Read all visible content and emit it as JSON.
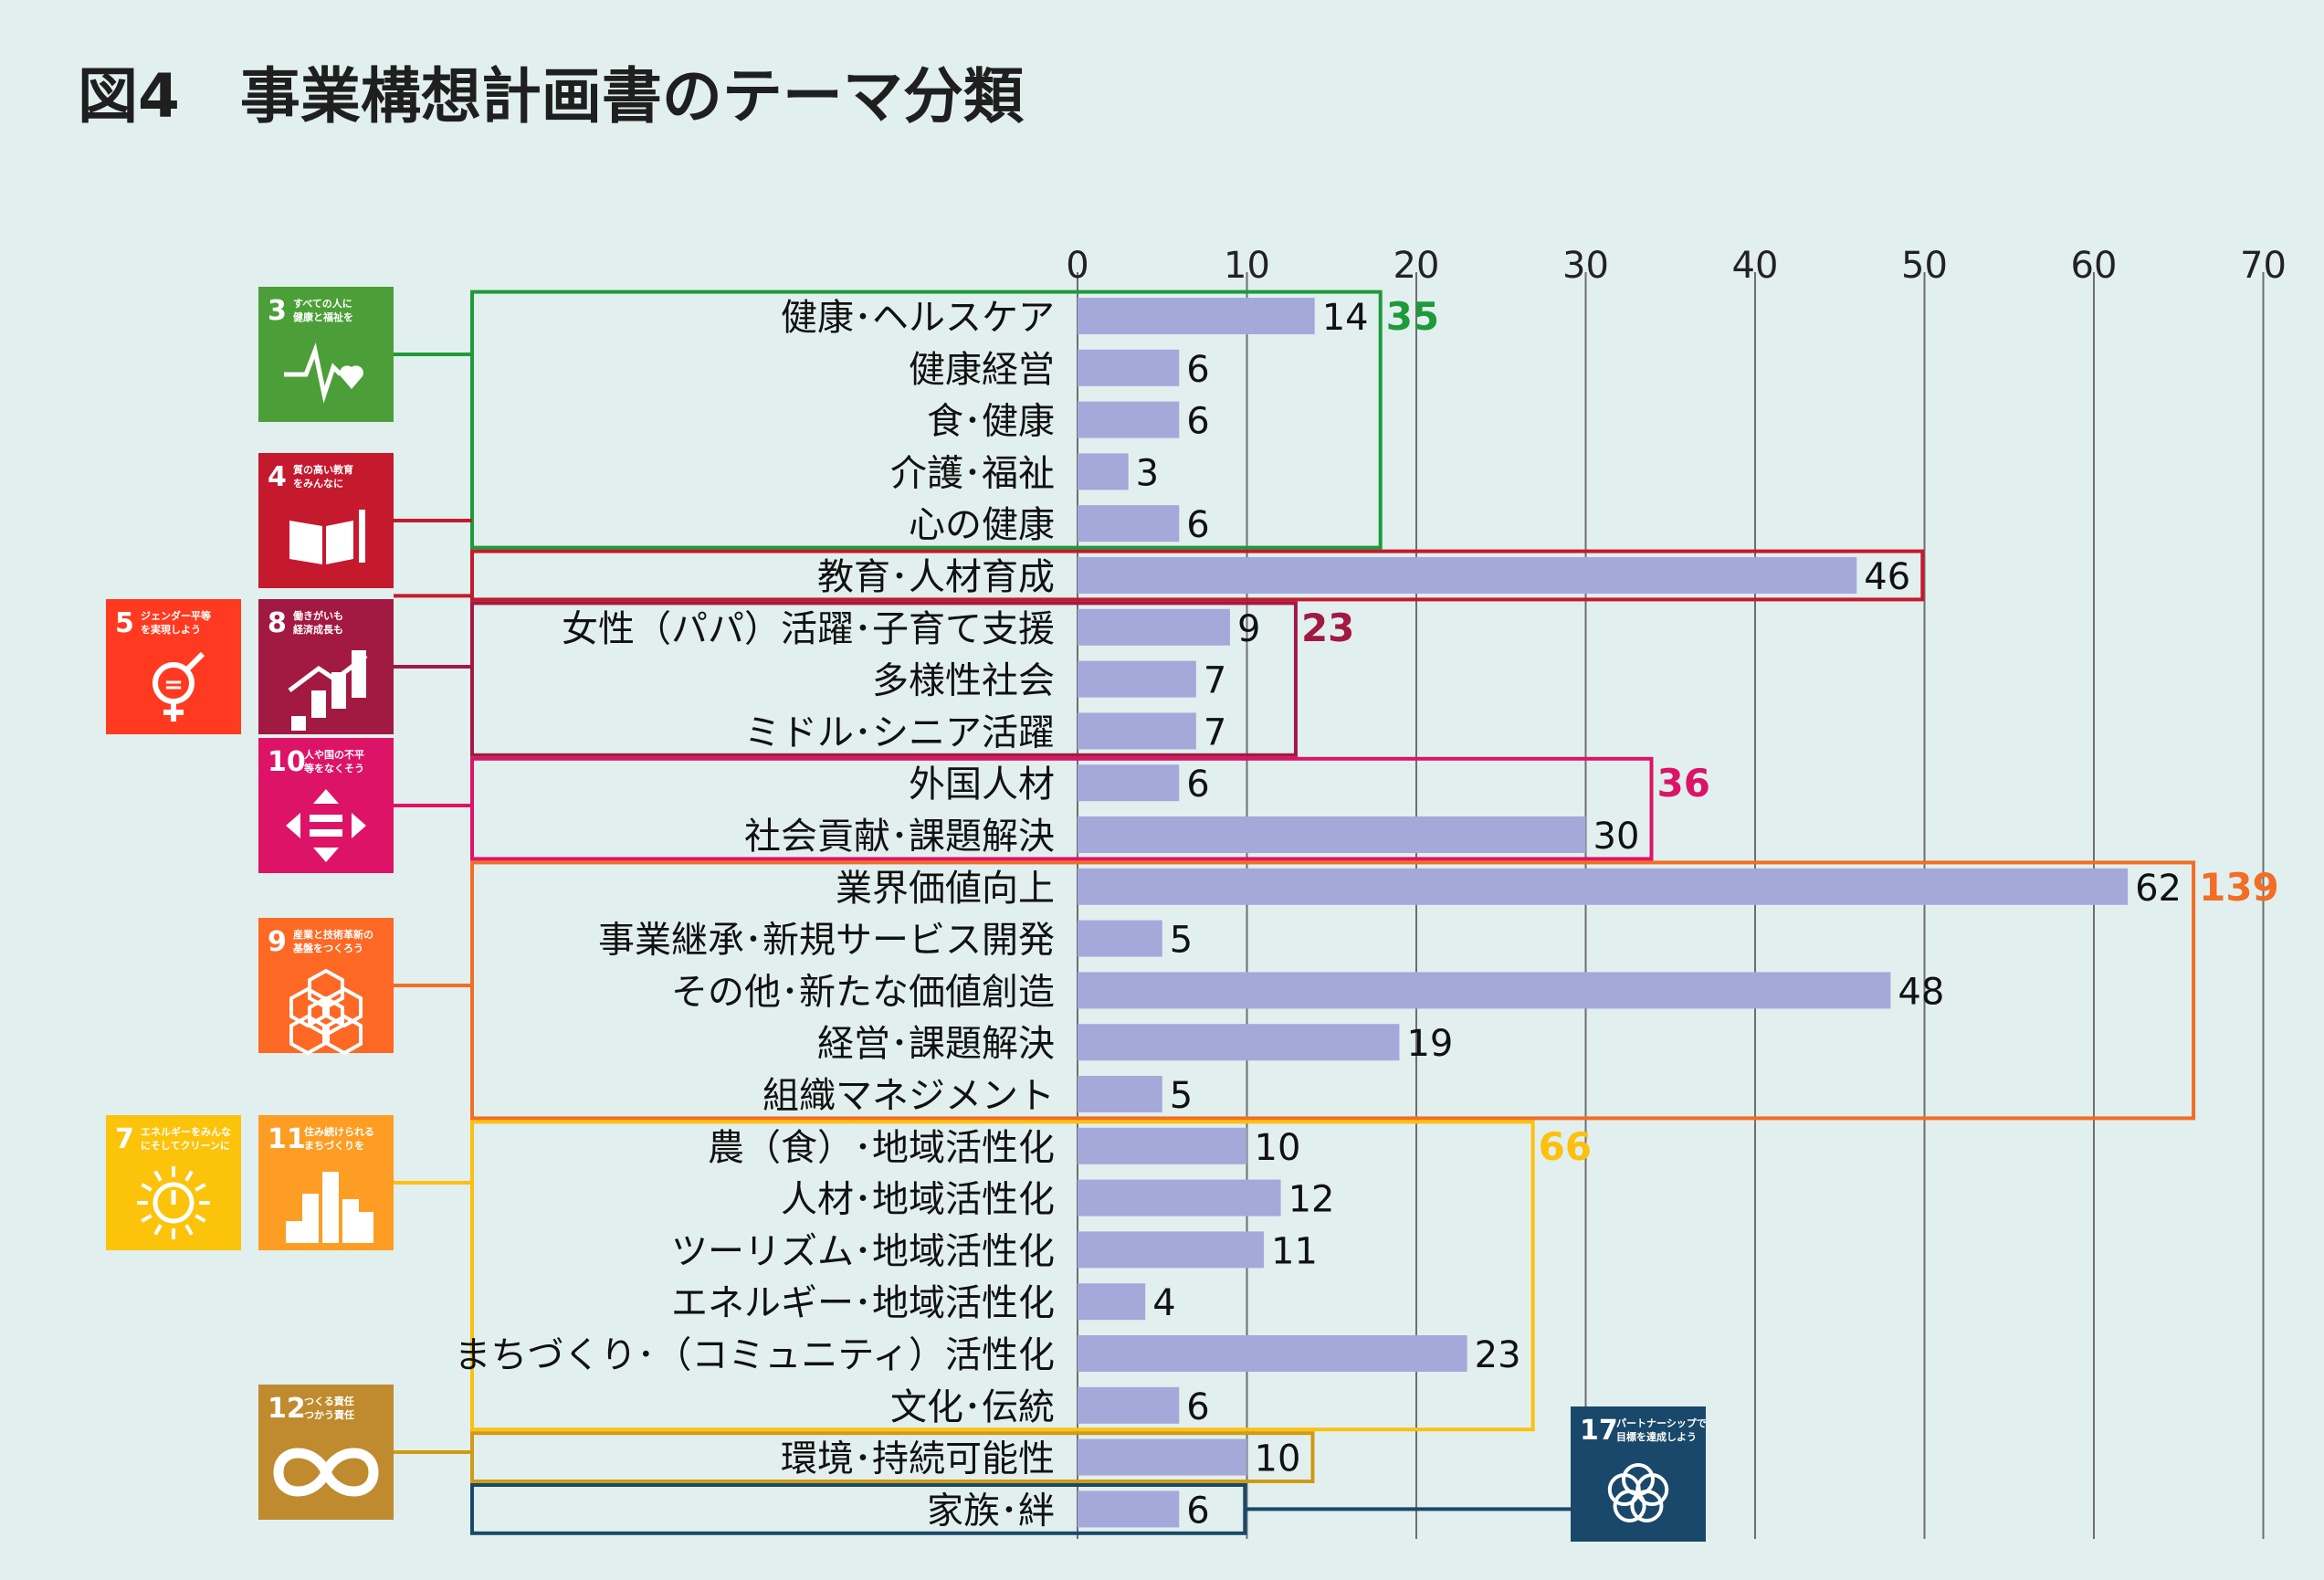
{
  "title": "図4　事業構想計画書のテーマ分類",
  "chart_data": {
    "type": "bar",
    "orientation": "horizontal",
    "title": "図4　事業構想計画書のテーマ分類",
    "xlim": [
      0,
      70
    ],
    "x_ticks": [
      0,
      10,
      20,
      30,
      40,
      50,
      60,
      70
    ],
    "grid": true,
    "bar_color": "#a4a9da",
    "categories": [
      "健康･ヘルスケア",
      "健康経営",
      "食･健康",
      "介護･福祉",
      "心の健康",
      "教育･人材育成",
      "女性（パパ）活躍･子育て支援",
      "多様性社会",
      "ミドル･シニア活躍",
      "外国人材",
      "社会貢献･課題解決",
      "業界価値向上",
      "事業継承･新規サービス開発",
      "その他･新たな価値創造",
      "経営･課題解決",
      "組織マネジメント",
      "農（食）･地域活性化",
      "人材･地域活性化",
      "ツーリズム･地域活性化",
      "エネルギー･地域活性化",
      "まちづくり･（コミュニティ）活性化",
      "文化･伝統",
      "環境･持続可能性",
      "家族･絆"
    ],
    "values": [
      14,
      6,
      6,
      3,
      6,
      46,
      9,
      7,
      7,
      6,
      30,
      62,
      5,
      48,
      19,
      5,
      10,
      12,
      11,
      4,
      23,
      6,
      10,
      6
    ],
    "groups": [
      {
        "start": 0,
        "end": 4,
        "total": "35",
        "color": "#1e9a3a",
        "sdgs": [
          "3"
        ]
      },
      {
        "start": 5,
        "end": 5,
        "total": "",
        "color": "#c5192d",
        "sdgs": [
          "4"
        ]
      },
      {
        "start": 6,
        "end": 8,
        "total": "23",
        "color": "#a21942",
        "sdgs": [
          "5",
          "8"
        ]
      },
      {
        "start": 9,
        "end": 10,
        "total": "36",
        "color": "#dd1367",
        "sdgs": [
          "10"
        ]
      },
      {
        "start": 11,
        "end": 15,
        "total": "139",
        "color": "#f36d25",
        "sdgs": [
          "9"
        ]
      },
      {
        "start": 16,
        "end": 21,
        "total": "66",
        "color": "#fdc00f",
        "sdgs": [
          "7",
          "11"
        ]
      },
      {
        "start": 22,
        "end": 22,
        "total": "",
        "color": "#d09a15",
        "sdgs": [
          "12"
        ]
      },
      {
        "start": 23,
        "end": 23,
        "total": "",
        "color": "#19486a",
        "sdgs": [
          "17"
        ]
      }
    ]
  },
  "sdg_icons": [
    {
      "num": "3",
      "caption": "すべての人に健康と福祉を",
      "color": "#4c9f38",
      "icon": "heartbeat-icon"
    },
    {
      "num": "4",
      "caption": "質の高い教育をみんなに",
      "color": "#c5192d",
      "icon": "book-pencil-icon"
    },
    {
      "num": "5",
      "caption": "ジェンダー平等を実現しよう",
      "color": "#ff3a21",
      "icon": "gender-equality-icon"
    },
    {
      "num": "8",
      "caption": "働きがいも経済成長も",
      "color": "#a21942",
      "icon": "growth-chart-icon"
    },
    {
      "num": "10",
      "caption": "人や国の不平等をなくそう",
      "color": "#dd1367",
      "icon": "arrows-equal-icon"
    },
    {
      "num": "9",
      "caption": "産業と技術革新の基盤をつくろう",
      "color": "#fd6925",
      "icon": "cubes-icon"
    },
    {
      "num": "7",
      "caption": "エネルギーをみんなにそしてクリーンに",
      "color": "#fcc30b",
      "icon": "sun-power-icon"
    },
    {
      "num": "11",
      "caption": "住み続けられるまちづくりを",
      "color": "#fd9d24",
      "icon": "city-buildings-icon"
    },
    {
      "num": "12",
      "caption": "つくる責任つかう責任",
      "color": "#bf8b2e",
      "icon": "infinity-icon"
    },
    {
      "num": "17",
      "caption": "パートナーシップで目標を達成しよう",
      "color": "#19486a",
      "icon": "flower-rings-icon"
    }
  ]
}
